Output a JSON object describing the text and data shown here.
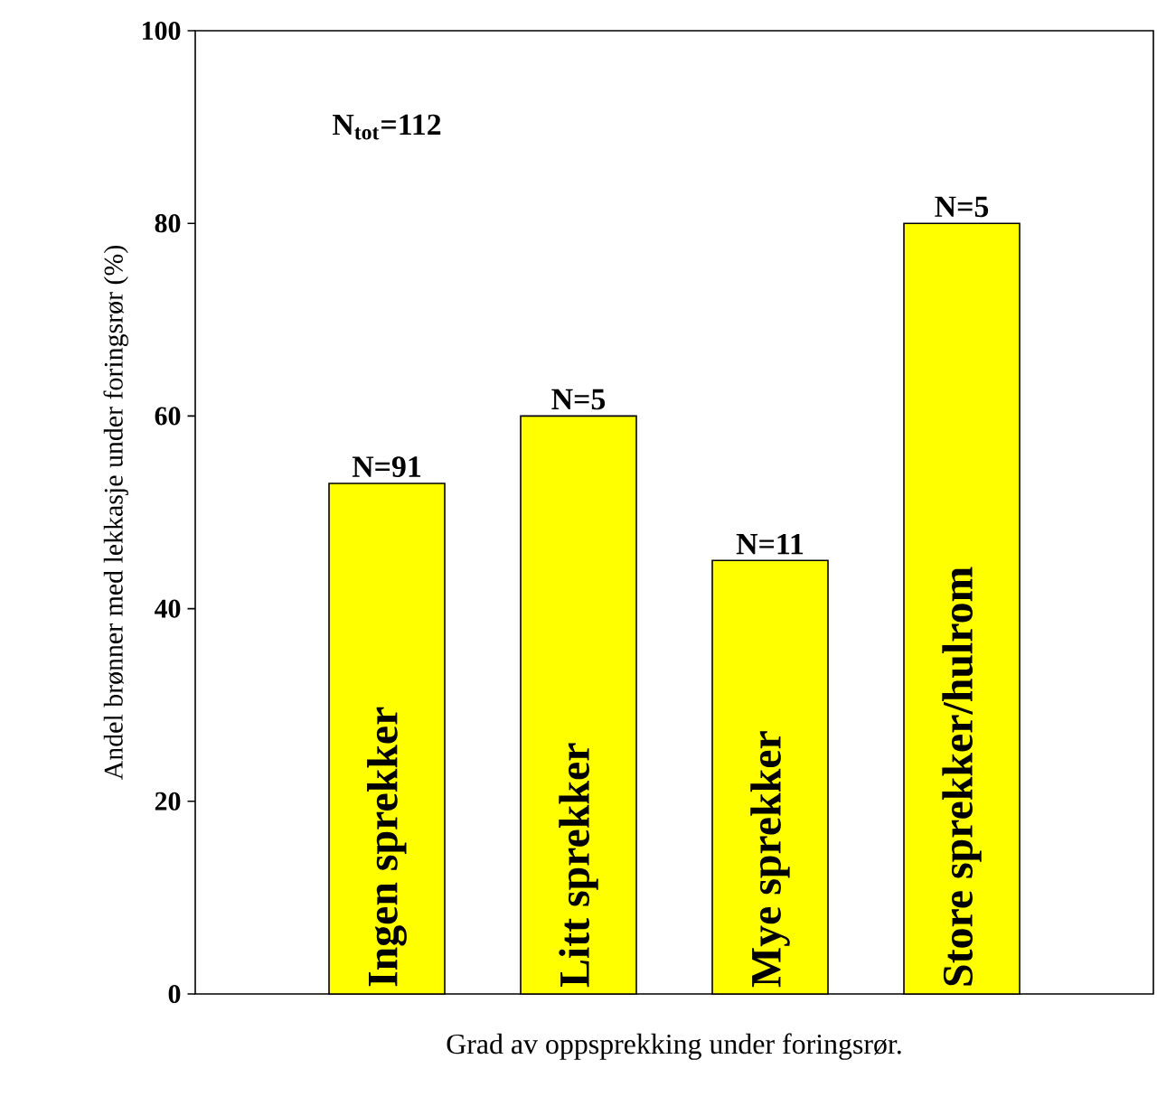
{
  "chart_data": {
    "type": "bar",
    "xlabel": "Grad av oppsprekking under foringsrør.",
    "ylabel": "Andel brønner med lekkasje under foringsrør (%)",
    "categories": [
      "Ingen sprekker",
      "Litt sprekker",
      "Mye sprekker",
      "Store sprekker/hulrom"
    ],
    "values": [
      53,
      60,
      45,
      80
    ],
    "color": "#ffff00",
    "ylim": [
      0,
      100
    ],
    "yticks": [
      0,
      20,
      40,
      60,
      80,
      100
    ],
    "annotations": [
      {
        "text": "N=91",
        "x": "Ingen sprekker",
        "y": 53
      },
      {
        "text": "N=5",
        "x": "Litt sprekker",
        "y": 60
      },
      {
        "text": "N=11",
        "x": "Mye sprekker",
        "y": 45
      },
      {
        "text": "N=5",
        "x": "Store sprekker/hulrom",
        "y": 80
      },
      "N$_{tot}$=112"
    ]
  }
}
